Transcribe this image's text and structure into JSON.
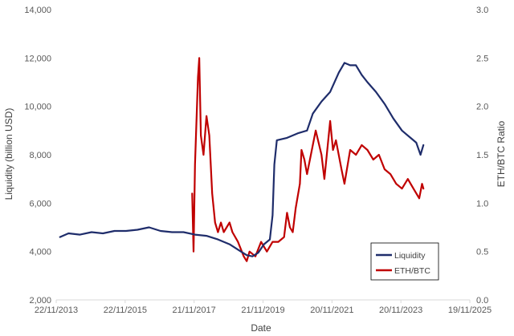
{
  "chart_data": {
    "type": "line",
    "title": "",
    "xlabel": "Date",
    "ylabel_left": "Liquidity (billion USD)",
    "ylabel_right": "ETH/BTC Ratio",
    "x_ticks": [
      "22/11/2013",
      "22/11/2015",
      "21/11/2017",
      "21/11/2019",
      "20/11/2021",
      "20/11/2023",
      "19/11/2025"
    ],
    "x_range": [
      "2013-11-22",
      "2025-11-19"
    ],
    "y_left_ticks": [
      "2,000",
      "4,000",
      "6,000",
      "8,000",
      "10,000",
      "12,000",
      "14,000"
    ],
    "y_left_range": [
      2000,
      14000
    ],
    "y_right_ticks": [
      "0.0",
      "0.5",
      "1.0",
      "1.5",
      "2.0",
      "2.5",
      "3.0"
    ],
    "y_right_range": [
      0,
      3.0
    ],
    "grid": false,
    "legend_position": "bottom-right",
    "series": [
      {
        "name": "Liquidity",
        "axis": "left",
        "color": "#1f2d6b",
        "points": [
          [
            "2014-01-01",
            4600
          ],
          [
            "2014-04-01",
            4750
          ],
          [
            "2014-08-01",
            4700
          ],
          [
            "2014-12-01",
            4800
          ],
          [
            "2015-04-01",
            4750
          ],
          [
            "2015-08-01",
            4850
          ],
          [
            "2015-12-01",
            4850
          ],
          [
            "2016-04-01",
            4900
          ],
          [
            "2016-08-01",
            5000
          ],
          [
            "2016-12-01",
            4850
          ],
          [
            "2017-04-01",
            4800
          ],
          [
            "2017-08-01",
            4800
          ],
          [
            "2017-12-01",
            4700
          ],
          [
            "2018-04-01",
            4650
          ],
          [
            "2018-08-01",
            4500
          ],
          [
            "2018-12-01",
            4300
          ],
          [
            "2019-04-01",
            4000
          ],
          [
            "2019-06-01",
            3850
          ],
          [
            "2019-08-01",
            3800
          ],
          [
            "2019-10-01",
            3950
          ],
          [
            "2019-12-01",
            4300
          ],
          [
            "2020-02-01",
            4500
          ],
          [
            "2020-03-01",
            5500
          ],
          [
            "2020-03-20",
            7600
          ],
          [
            "2020-04-15",
            8600
          ],
          [
            "2020-08-01",
            8700
          ],
          [
            "2020-12-01",
            8900
          ],
          [
            "2021-03-01",
            9000
          ],
          [
            "2021-05-01",
            9700
          ],
          [
            "2021-08-01",
            10200
          ],
          [
            "2021-11-01",
            10600
          ],
          [
            "2022-02-01",
            11400
          ],
          [
            "2022-04-01",
            11800
          ],
          [
            "2022-06-01",
            11700
          ],
          [
            "2022-08-01",
            11700
          ],
          [
            "2022-10-01",
            11300
          ],
          [
            "2022-12-01",
            11000
          ],
          [
            "2023-03-01",
            10600
          ],
          [
            "2023-06-01",
            10100
          ],
          [
            "2023-09-01",
            9500
          ],
          [
            "2023-12-01",
            9000
          ],
          [
            "2024-03-01",
            8700
          ],
          [
            "2024-05-01",
            8500
          ],
          [
            "2024-06-15",
            8000
          ],
          [
            "2024-07-15",
            8400
          ]
        ]
      },
      {
        "name": "ETH/BTC",
        "axis": "right",
        "color": "#c00000",
        "points": [
          [
            "2017-11-01",
            1.1
          ],
          [
            "2017-11-15",
            0.5
          ],
          [
            "2017-12-01",
            1.4
          ],
          [
            "2018-01-01",
            2.3
          ],
          [
            "2018-01-15",
            2.5
          ],
          [
            "2018-02-01",
            1.7
          ],
          [
            "2018-03-01",
            1.5
          ],
          [
            "2018-04-01",
            1.9
          ],
          [
            "2018-05-01",
            1.7
          ],
          [
            "2018-06-01",
            1.1
          ],
          [
            "2018-07-01",
            0.8
          ],
          [
            "2018-08-01",
            0.7
          ],
          [
            "2018-09-01",
            0.8
          ],
          [
            "2018-10-01",
            0.7
          ],
          [
            "2018-11-01",
            0.75
          ],
          [
            "2018-12-01",
            0.8
          ],
          [
            "2019-01-01",
            0.7
          ],
          [
            "2019-03-01",
            0.6
          ],
          [
            "2019-05-01",
            0.45
          ],
          [
            "2019-06-01",
            0.4
          ],
          [
            "2019-07-01",
            0.5
          ],
          [
            "2019-09-01",
            0.45
          ],
          [
            "2019-11-01",
            0.6
          ],
          [
            "2020-01-01",
            0.5
          ],
          [
            "2020-03-01",
            0.6
          ],
          [
            "2020-05-01",
            0.6
          ],
          [
            "2020-07-01",
            0.65
          ],
          [
            "2020-08-01",
            0.9
          ],
          [
            "2020-09-01",
            0.75
          ],
          [
            "2020-10-01",
            0.7
          ],
          [
            "2020-11-01",
            0.95
          ],
          [
            "2020-12-15",
            1.2
          ],
          [
            "2021-01-01",
            1.55
          ],
          [
            "2021-02-01",
            1.45
          ],
          [
            "2021-03-01",
            1.3
          ],
          [
            "2021-05-01",
            1.6
          ],
          [
            "2021-06-01",
            1.75
          ],
          [
            "2021-08-01",
            1.5
          ],
          [
            "2021-09-01",
            1.25
          ],
          [
            "2021-11-01",
            1.85
          ],
          [
            "2021-12-01",
            1.55
          ],
          [
            "2022-01-01",
            1.65
          ],
          [
            "2022-03-01",
            1.35
          ],
          [
            "2022-04-01",
            1.2
          ],
          [
            "2022-06-01",
            1.55
          ],
          [
            "2022-08-01",
            1.5
          ],
          [
            "2022-10-01",
            1.6
          ],
          [
            "2022-12-01",
            1.55
          ],
          [
            "2023-02-01",
            1.45
          ],
          [
            "2023-04-01",
            1.5
          ],
          [
            "2023-06-01",
            1.35
          ],
          [
            "2023-08-01",
            1.3
          ],
          [
            "2023-10-01",
            1.2
          ],
          [
            "2023-12-01",
            1.15
          ],
          [
            "2024-02-01",
            1.25
          ],
          [
            "2024-04-01",
            1.15
          ],
          [
            "2024-06-01",
            1.05
          ],
          [
            "2024-07-01",
            1.2
          ],
          [
            "2024-07-15",
            1.15
          ]
        ]
      }
    ]
  }
}
